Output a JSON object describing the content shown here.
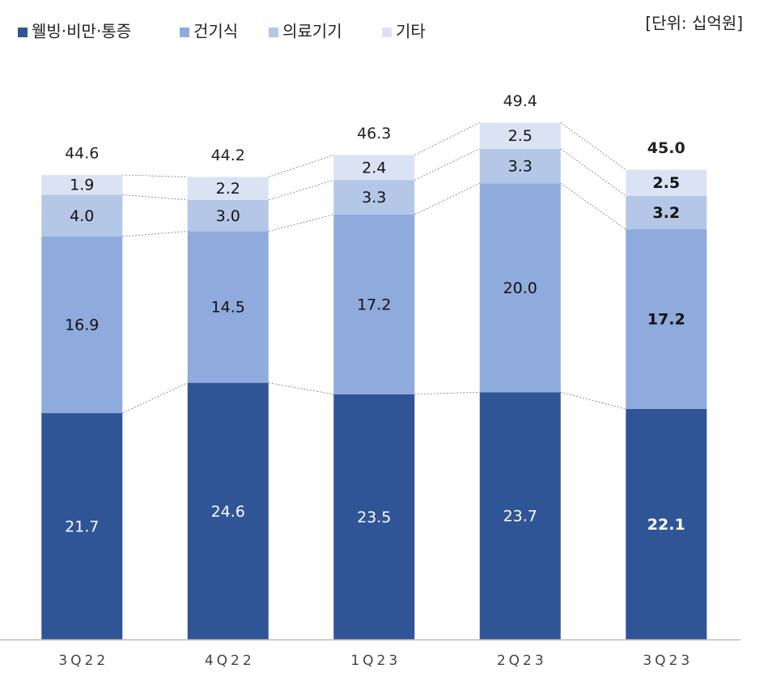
{
  "chart_data": {
    "type": "stacked-bar",
    "unit": "[단위: 십억원]",
    "categories": [
      "3Q22",
      "4Q22",
      "1Q23",
      "2Q23",
      "3Q23"
    ],
    "series": [
      {
        "name": "웰빙·비만·통증",
        "color": "#2f5597",
        "values": [
          21.7,
          24.6,
          23.5,
          23.7,
          22.1
        ],
        "value_labels": [
          "21.7",
          "24.6",
          "23.5",
          "23.7",
          "22.1"
        ]
      },
      {
        "name": "건기식",
        "color": "#8faadc",
        "values": [
          16.9,
          14.5,
          17.2,
          20.0,
          17.2
        ],
        "value_labels": [
          "16.9",
          "14.5",
          "17.2",
          "20.0",
          "17.2"
        ]
      },
      {
        "name": "의료기기",
        "color": "#b4c7e7",
        "values": [
          4.0,
          3.0,
          3.3,
          3.3,
          3.2
        ],
        "value_labels": [
          "4.0",
          "3.0",
          "3.3",
          "3.3",
          "3.2"
        ]
      },
      {
        "name": "기타",
        "color": "#dae3f3",
        "values": [
          1.9,
          2.2,
          2.4,
          2.5,
          2.5
        ],
        "value_labels": [
          "1.9",
          "2.2",
          "2.4",
          "2.5",
          "2.5"
        ]
      }
    ],
    "totals": {
      "values": [
        44.6,
        44.2,
        46.3,
        49.4,
        45.0
      ],
      "value_labels": [
        "44.6",
        "44.2",
        "46.3",
        "49.4",
        "45.0"
      ]
    },
    "ylim": [
      0,
      60
    ]
  }
}
